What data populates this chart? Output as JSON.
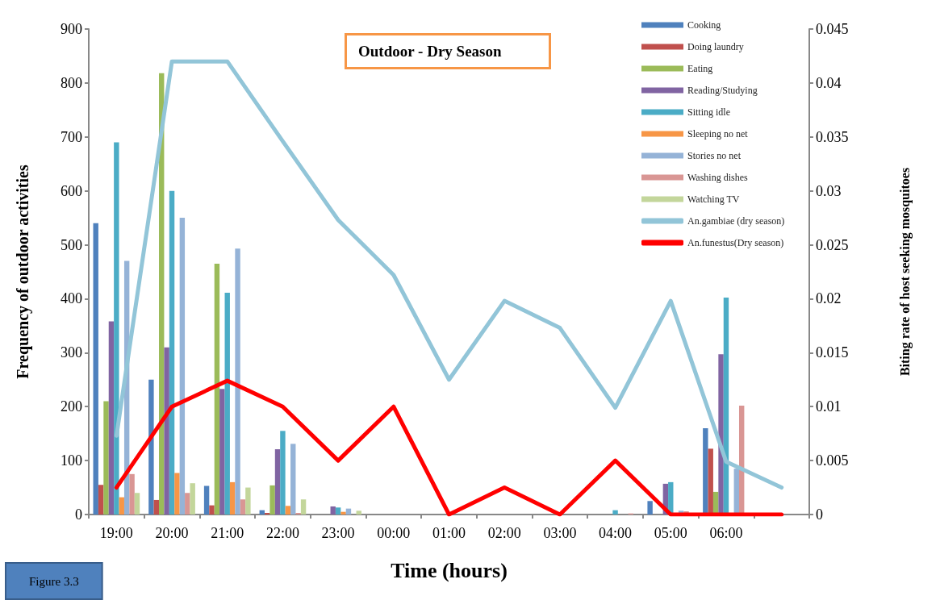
{
  "chart_data": {
    "type": "bar",
    "title": "Outdoor - Dry Season",
    "xlabel": "Time (hours)",
    "ylabel": "Frequency of outdoor activities",
    "y2label": "Biting rate of host seeking mosquitoes",
    "categories": [
      "19:00",
      "20:00",
      "21:00",
      "22:00",
      "23:00",
      "00:00",
      "01:00",
      "02:00",
      "03:00",
      "04:00",
      "05:00",
      "06:00",
      null
    ],
    "series": [
      {
        "name": "Cooking",
        "color": "#4f81bd",
        "values": [
          540,
          250,
          53,
          8,
          0,
          0,
          0,
          0,
          0,
          0,
          25,
          160,
          null
        ]
      },
      {
        "name": "Doing laundry",
        "color": "#c0504d",
        "values": [
          55,
          27,
          17,
          3,
          0,
          0,
          0,
          0,
          0,
          0,
          null,
          122,
          null
        ]
      },
      {
        "name": "Eating",
        "color": "#9bbb59",
        "values": [
          210,
          818,
          465,
          54,
          0,
          0,
          0,
          0,
          0,
          0,
          0,
          42,
          null
        ]
      },
      {
        "name": "Reading/Studying",
        "color": "#8064a2",
        "values": [
          358,
          310,
          233,
          121,
          15,
          0,
          0,
          0,
          0,
          0,
          57,
          297,
          null
        ]
      },
      {
        "name": "Sitting idle",
        "color": "#4bacc6",
        "values": [
          690,
          600,
          411,
          155,
          13,
          0,
          0,
          0,
          0,
          8,
          60,
          402,
          null
        ]
      },
      {
        "name": "Sleeping no net",
        "color": "#f79646",
        "values": [
          32,
          77,
          60,
          16,
          5,
          0,
          0,
          0,
          0,
          0,
          0,
          2,
          null
        ]
      },
      {
        "name": "Stories no net",
        "color": "#95b3d7",
        "values": [
          470,
          550,
          493,
          131,
          11,
          0,
          0,
          0,
          0,
          0,
          7,
          85,
          null
        ]
      },
      {
        "name": "Washing dishes",
        "color": "#d99694",
        "values": [
          75,
          40,
          28,
          3,
          0,
          0,
          0,
          0,
          0,
          2,
          6,
          202,
          null
        ]
      },
      {
        "name": "Watching TV",
        "color": "#c3d69b",
        "values": [
          40,
          58,
          50,
          28,
          7,
          0,
          0,
          0,
          0,
          0,
          0,
          0,
          null
        ]
      },
      {
        "name": "An.gambiae (dry season)",
        "type": "line",
        "axis": "y2",
        "color": "#92c5d8",
        "values": [
          0.0073,
          0.042,
          0.042,
          0.0346,
          0.0273,
          0.0222,
          0.0125,
          0.0198,
          0.0173,
          0.0099,
          0.0198,
          0.0049,
          0.0025
        ]
      },
      {
        "name": "An.funestus(Dry season)",
        "type": "line",
        "axis": "y2",
        "color": "#ff0000",
        "values": [
          0.0025,
          0.01,
          0.0124,
          0.01,
          0.005,
          0.01,
          0,
          0.0025,
          0,
          0.005,
          0,
          0,
          0
        ]
      }
    ],
    "ylim": [
      0,
      900
    ],
    "yticks": [
      0,
      100,
      200,
      300,
      400,
      500,
      600,
      700,
      800,
      900
    ],
    "y2lim": [
      0,
      0.045
    ],
    "y2ticks": [
      0,
      0.005,
      0.01,
      0.015,
      0.02,
      0.025,
      0.03,
      0.035,
      0.04,
      0.045
    ],
    "legend": "top right",
    "grid": false,
    "marker": "none",
    "line_style": "solid",
    "annotations": [
      "Figure 3.3"
    ]
  }
}
